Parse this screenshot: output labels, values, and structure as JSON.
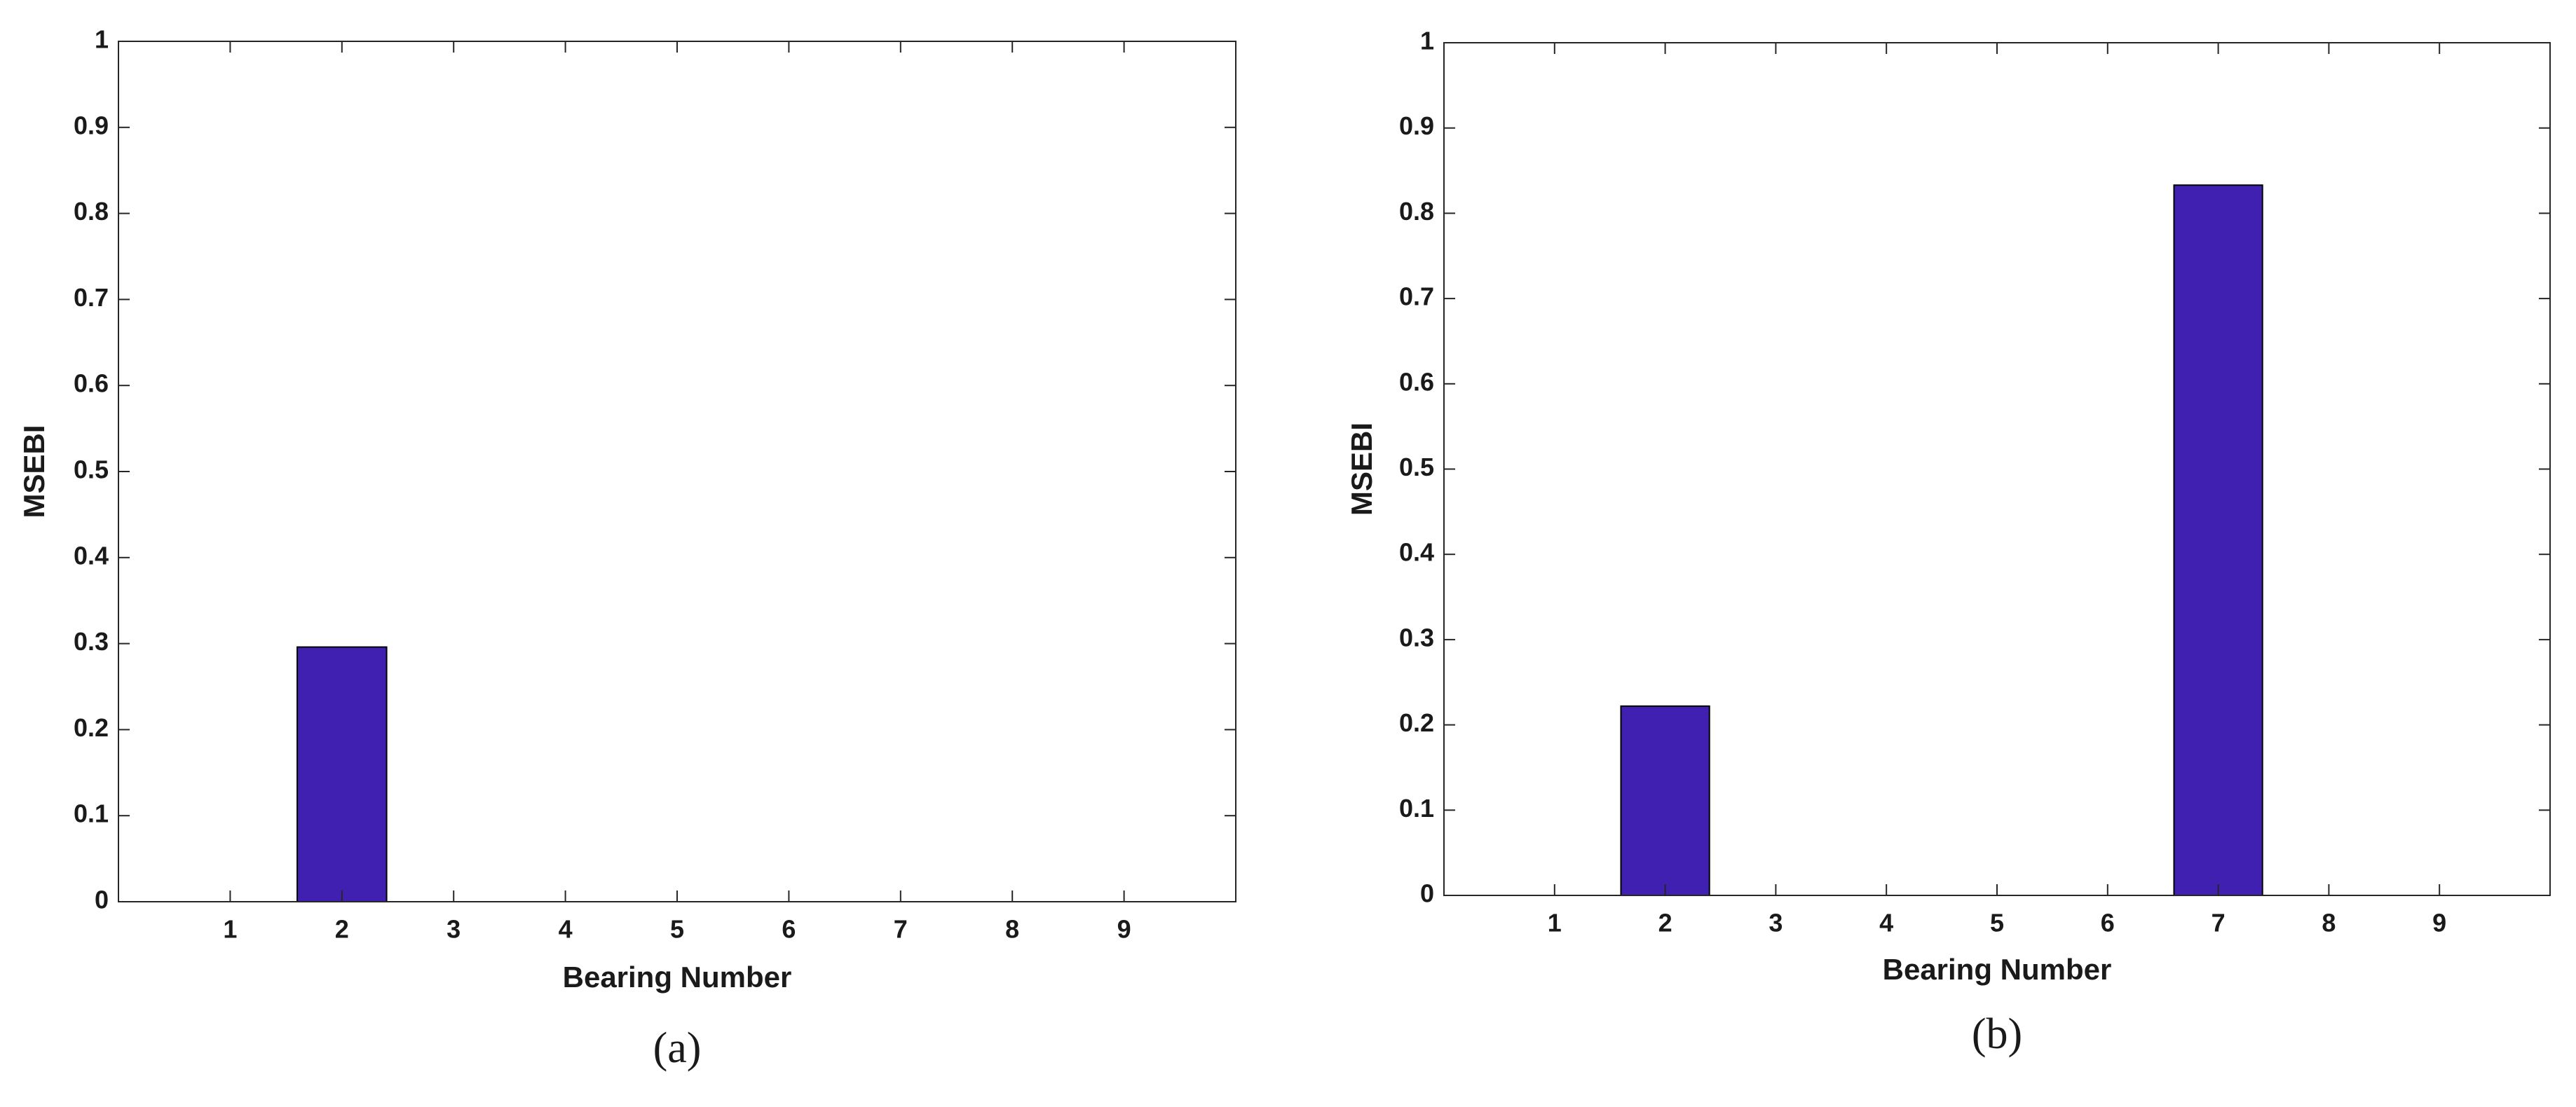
{
  "chart_data": [
    {
      "type": "bar",
      "x": [
        1,
        2,
        3,
        4,
        5,
        6,
        7,
        8,
        9
      ],
      "values": [
        0,
        0.296,
        0,
        0,
        0,
        0,
        0,
        0,
        0
      ],
      "xlim": [
        0,
        10
      ],
      "xticks": [
        1,
        2,
        3,
        4,
        5,
        6,
        7,
        8,
        9
      ],
      "ylim": [
        0,
        1
      ],
      "yticks": [
        0,
        0.1,
        0.2,
        0.3,
        0.4,
        0.5,
        0.6,
        0.7,
        0.8,
        0.9,
        1
      ],
      "x_label": "Bearing Number",
      "y_label": "MSEBI",
      "caption": "(a)",
      "color": "#4020b0",
      "grid": false
    },
    {
      "type": "bar",
      "x": [
        1,
        2,
        3,
        4,
        5,
        6,
        7,
        8,
        9
      ],
      "values": [
        0,
        0.222,
        0,
        0,
        0,
        0,
        0.833,
        0,
        0
      ],
      "xlim": [
        0,
        10
      ],
      "xticks": [
        1,
        2,
        3,
        4,
        5,
        6,
        7,
        8,
        9
      ],
      "ylim": [
        0,
        1
      ],
      "yticks": [
        0,
        0.1,
        0.2,
        0.3,
        0.4,
        0.5,
        0.6,
        0.7,
        0.8,
        0.9,
        1
      ],
      "x_label": "Bearing Number",
      "y_label": "MSEBI",
      "caption": "(b)",
      "color": "#4020b0",
      "grid": false
    }
  ]
}
